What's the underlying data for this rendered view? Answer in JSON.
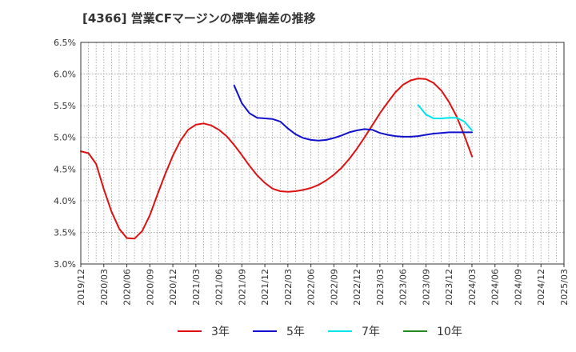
{
  "chart_data": {
    "type": "line",
    "title": "[4366]  営業CFマージンの標準偏差の推移",
    "xlabel": "",
    "ylabel": "",
    "ylim": [
      3.0,
      6.5
    ],
    "yticks": [
      "3.0%",
      "3.5%",
      "4.0%",
      "4.5%",
      "5.0%",
      "5.5%",
      "6.0%",
      "6.5%"
    ],
    "ytick_values": [
      3.0,
      3.5,
      4.0,
      4.5,
      5.0,
      5.5,
      6.0,
      6.5
    ],
    "x_start": "2019/12",
    "x_end": "2025/03",
    "xticks": [
      "2019/12",
      "2020/03",
      "2020/06",
      "2020/09",
      "2020/12",
      "2021/03",
      "2021/06",
      "2021/09",
      "2021/12",
      "2022/03",
      "2022/06",
      "2022/09",
      "2022/12",
      "2023/03",
      "2023/06",
      "2023/09",
      "2023/12",
      "2024/03",
      "2024/06",
      "2024/09",
      "2024/12",
      "2025/03"
    ],
    "grid": true,
    "legend_position": "bottom",
    "series": [
      {
        "name": "3年",
        "color": "#dd1111",
        "points": [
          [
            "2019/12",
            4.78
          ],
          [
            "2020/01",
            4.75
          ],
          [
            "2020/02",
            4.58
          ],
          [
            "2020/03",
            4.18
          ],
          [
            "2020/04",
            3.83
          ],
          [
            "2020/05",
            3.56
          ],
          [
            "2020/06",
            3.41
          ],
          [
            "2020/07",
            3.4
          ],
          [
            "2020/08",
            3.52
          ],
          [
            "2020/09",
            3.77
          ],
          [
            "2020/10",
            4.1
          ],
          [
            "2020/11",
            4.42
          ],
          [
            "2020/12",
            4.71
          ],
          [
            "2021/01",
            4.95
          ],
          [
            "2021/02",
            5.12
          ],
          [
            "2021/03",
            5.2
          ],
          [
            "2021/04",
            5.22
          ],
          [
            "2021/05",
            5.19
          ],
          [
            "2021/06",
            5.12
          ],
          [
            "2021/07",
            5.02
          ],
          [
            "2021/08",
            4.88
          ],
          [
            "2021/09",
            4.72
          ],
          [
            "2021/10",
            4.55
          ],
          [
            "2021/11",
            4.4
          ],
          [
            "2021/12",
            4.28
          ],
          [
            "2022/01",
            4.19
          ],
          [
            "2022/02",
            4.15
          ],
          [
            "2022/03",
            4.14
          ],
          [
            "2022/04",
            4.15
          ],
          [
            "2022/05",
            4.17
          ],
          [
            "2022/06",
            4.2
          ],
          [
            "2022/07",
            4.25
          ],
          [
            "2022/08",
            4.32
          ],
          [
            "2022/09",
            4.41
          ],
          [
            "2022/10",
            4.52
          ],
          [
            "2022/11",
            4.66
          ],
          [
            "2022/12",
            4.82
          ],
          [
            "2023/01",
            5.0
          ],
          [
            "2023/02",
            5.19
          ],
          [
            "2023/03",
            5.38
          ],
          [
            "2023/04",
            5.55
          ],
          [
            "2023/05",
            5.71
          ],
          [
            "2023/06",
            5.83
          ],
          [
            "2023/07",
            5.9
          ],
          [
            "2023/08",
            5.93
          ],
          [
            "2023/09",
            5.92
          ],
          [
            "2023/10",
            5.86
          ],
          [
            "2023/11",
            5.74
          ],
          [
            "2023/12",
            5.56
          ],
          [
            "2024/01",
            5.33
          ],
          [
            "2024/02",
            5.03
          ],
          [
            "2024/03",
            4.7
          ]
        ]
      },
      {
        "name": "5年",
        "color": "#1111cc",
        "points": [
          [
            "2021/08",
            5.82
          ],
          [
            "2021/09",
            5.54
          ],
          [
            "2021/10",
            5.38
          ],
          [
            "2021/11",
            5.31
          ],
          [
            "2021/12",
            5.3
          ],
          [
            "2022/01",
            5.29
          ],
          [
            "2022/02",
            5.25
          ],
          [
            "2022/03",
            5.14
          ],
          [
            "2022/04",
            5.05
          ],
          [
            "2022/05",
            4.99
          ],
          [
            "2022/06",
            4.96
          ],
          [
            "2022/07",
            4.95
          ],
          [
            "2022/08",
            4.96
          ],
          [
            "2022/09",
            4.99
          ],
          [
            "2022/10",
            5.03
          ],
          [
            "2022/11",
            5.08
          ],
          [
            "2022/12",
            5.11
          ],
          [
            "2023/01",
            5.13
          ],
          [
            "2023/02",
            5.12
          ],
          [
            "2023/03",
            5.07
          ],
          [
            "2023/04",
            5.04
          ],
          [
            "2023/05",
            5.02
          ],
          [
            "2023/06",
            5.01
          ],
          [
            "2023/07",
            5.01
          ],
          [
            "2023/08",
            5.02
          ],
          [
            "2023/09",
            5.04
          ],
          [
            "2023/10",
            5.06
          ],
          [
            "2023/11",
            5.07
          ],
          [
            "2023/12",
            5.08
          ],
          [
            "2024/01",
            5.08
          ],
          [
            "2024/02",
            5.08
          ],
          [
            "2024/03",
            5.08
          ]
        ]
      },
      {
        "name": "7年",
        "color": "#00e5ee",
        "points": [
          [
            "2023/08",
            5.51
          ],
          [
            "2023/09",
            5.36
          ],
          [
            "2023/10",
            5.3
          ],
          [
            "2023/11",
            5.3
          ],
          [
            "2023/12",
            5.31
          ],
          [
            "2024/01",
            5.31
          ],
          [
            "2024/02",
            5.25
          ],
          [
            "2024/03",
            5.11
          ]
        ]
      },
      {
        "name": "10年",
        "color": "#228b22",
        "points": []
      }
    ]
  }
}
